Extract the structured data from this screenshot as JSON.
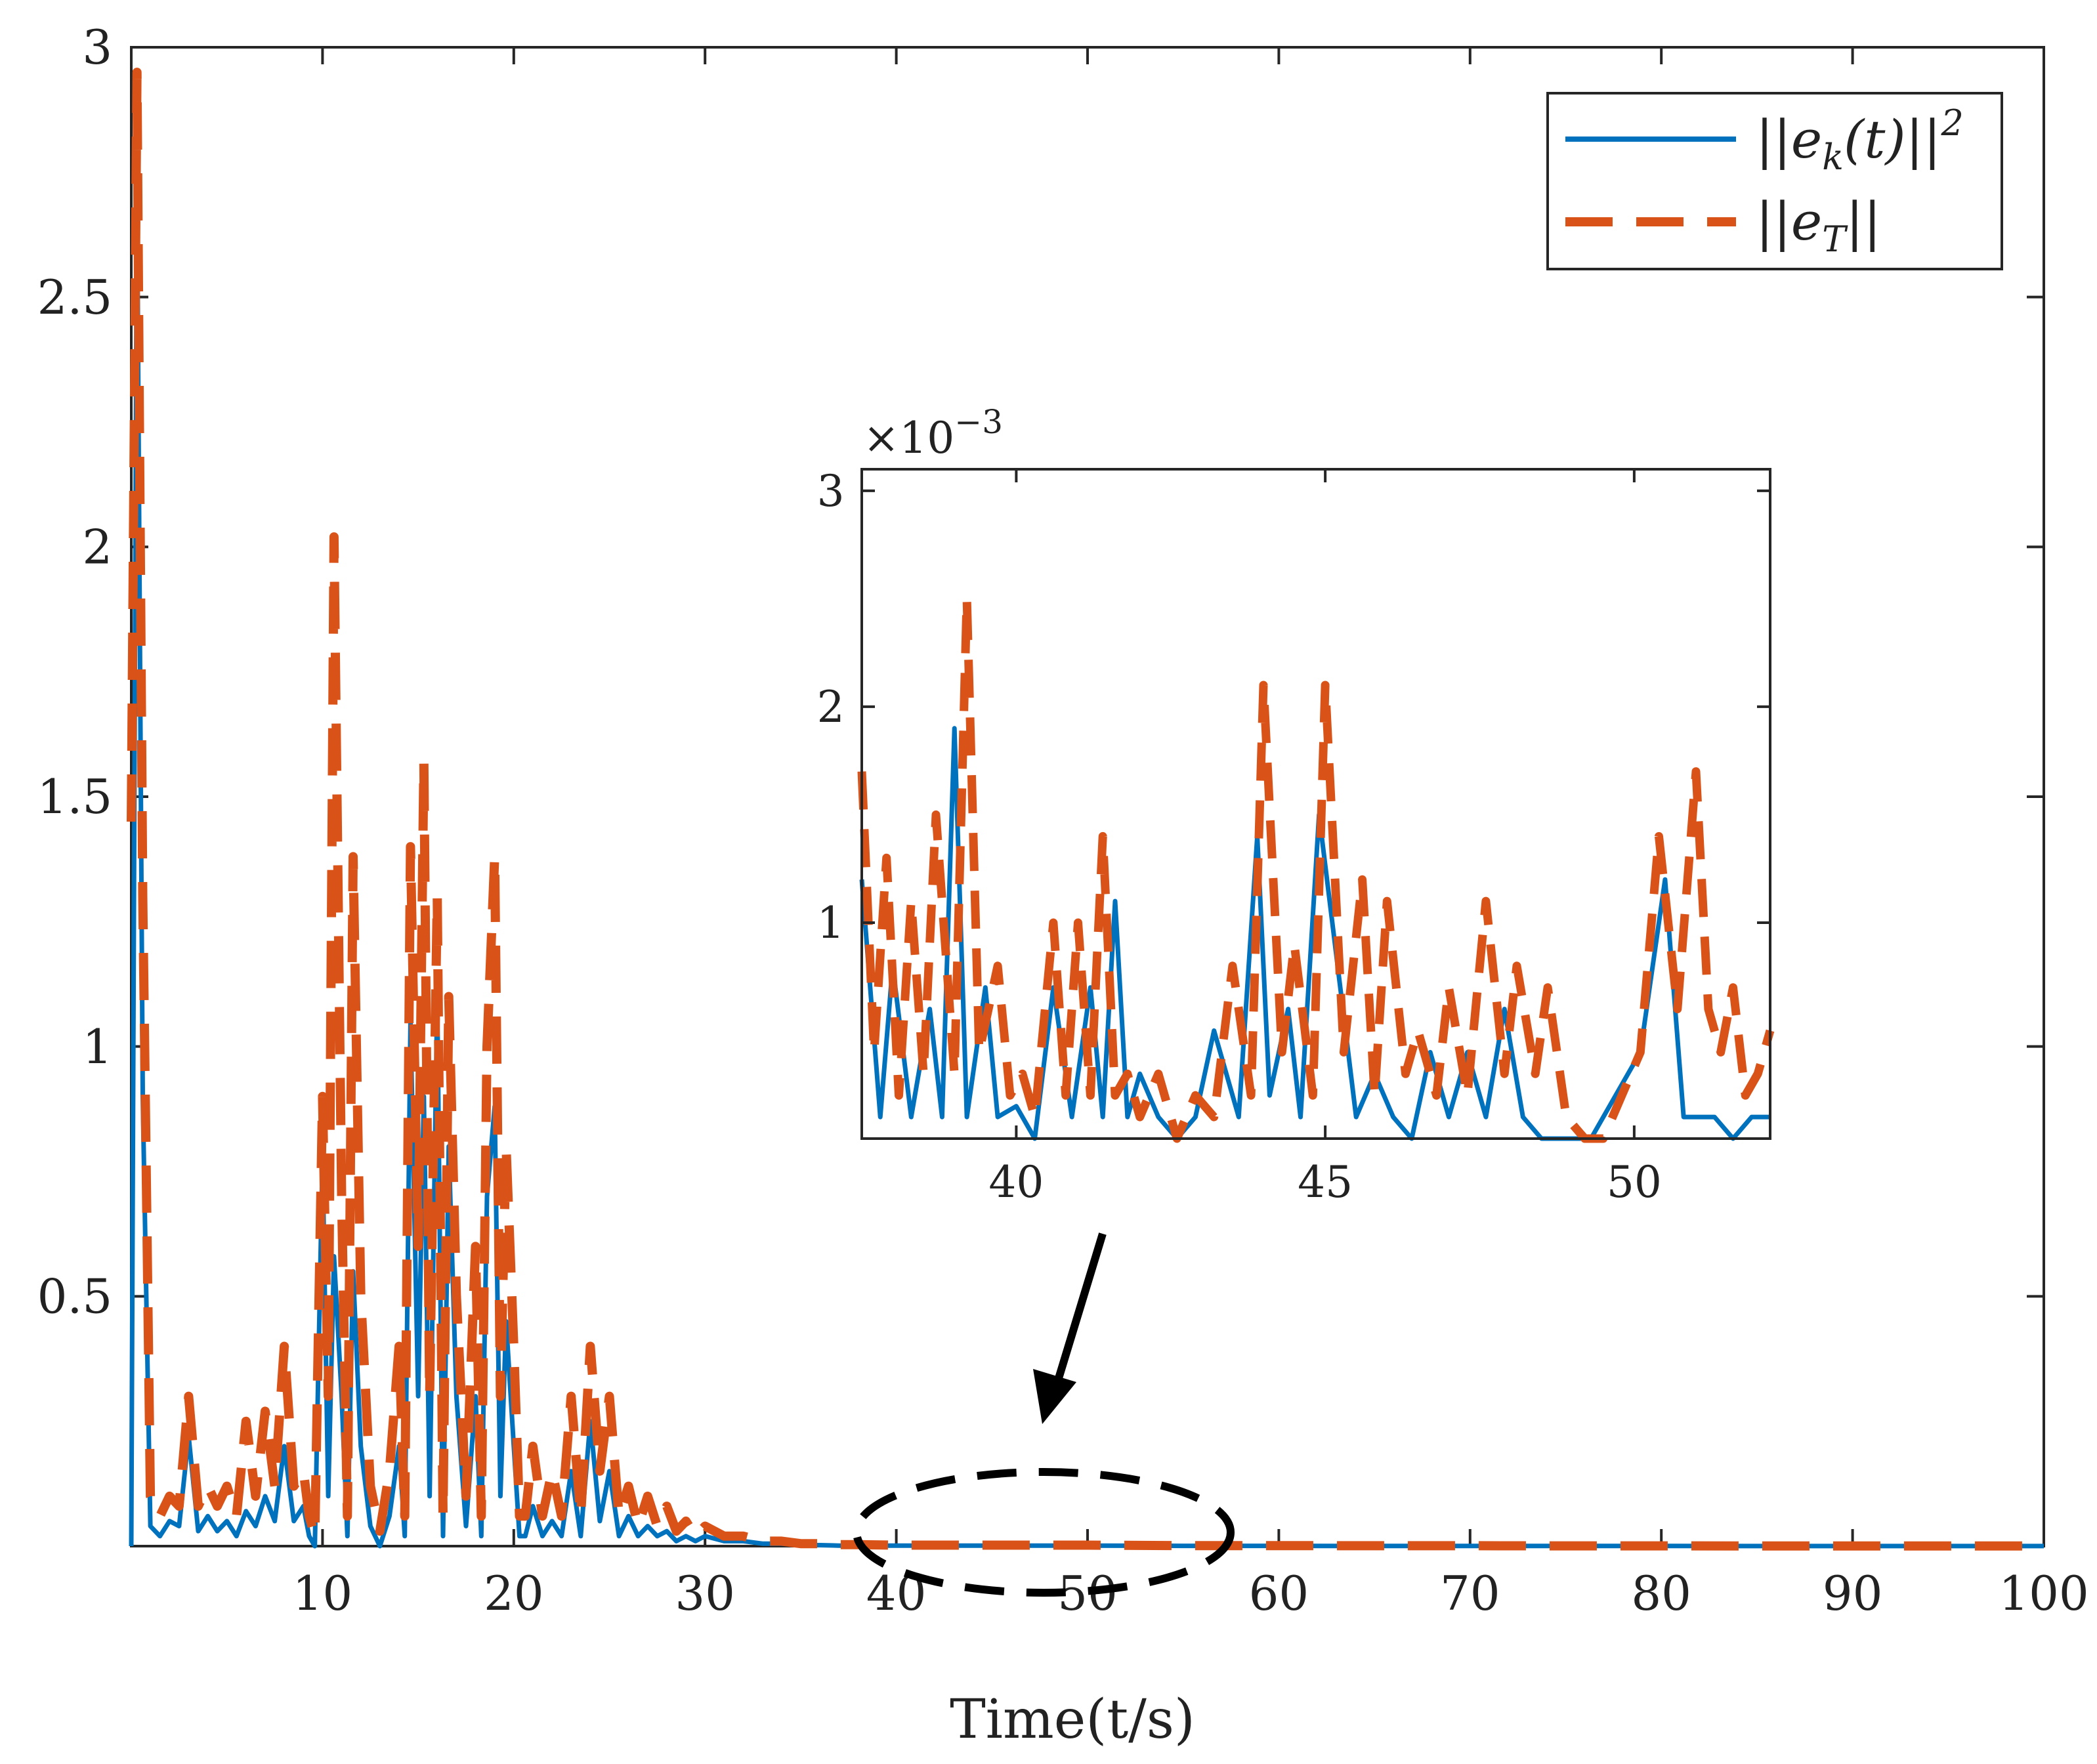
{
  "colors": {
    "series_blue": "#0072BD",
    "series_orange": "#D95319",
    "axis": "#262626",
    "background": "#ffffff"
  },
  "chart_data": [
    {
      "type": "line",
      "name": "main",
      "xlabel": "Time(t/s)",
      "ylabel": "",
      "xlim": [
        0,
        100
      ],
      "ylim": [
        0,
        3
      ],
      "xticks": [
        10,
        20,
        30,
        40,
        50,
        60,
        70,
        80,
        90,
        100
      ],
      "xtick_labels": [
        "10",
        "20",
        "30",
        "40",
        "50",
        "60",
        "70",
        "80",
        "90",
        "100"
      ],
      "yticks": [
        0.5,
        1,
        1.5,
        2,
        2.5,
        3
      ],
      "ytick_labels": [
        "0.5",
        "1",
        "1.5",
        "2",
        "2.5",
        "3"
      ],
      "legend_position": "top-right",
      "legend": [
        "||e_k(t)||^2",
        "||e_T||"
      ],
      "legend_display": [
        {
          "prefix": "||e",
          "sub": "k",
          "mid": "(t)||",
          "sup": "2"
        },
        {
          "prefix": "||e",
          "sub": "T",
          "mid": "||",
          "sup": ""
        }
      ],
      "series": [
        {
          "name": "||e_k(t)||^2",
          "style": "solid",
          "color": "#0072BD",
          "x": [
            0,
            0.3,
            0.6,
            1,
            1.5,
            2,
            2.5,
            3,
            3.5,
            4,
            4.5,
            5,
            5.5,
            6,
            6.5,
            7,
            7.5,
            8,
            8.5,
            9,
            9.3,
            9.6,
            10,
            10.3,
            10.6,
            11,
            11.3,
            11.6,
            12,
            12.5,
            13,
            13.5,
            14,
            14.3,
            14.6,
            15,
            15.3,
            15.6,
            16,
            16.3,
            16.6,
            17,
            17.5,
            18,
            18.3,
            18.6,
            19,
            19.3,
            19.6,
            20,
            20.3,
            20.6,
            21,
            21.5,
            22,
            22.5,
            23,
            23.5,
            24,
            24.5,
            25,
            25.5,
            26,
            26.5,
            27,
            27.5,
            28,
            28.5,
            29,
            29.5,
            30,
            31,
            32,
            33,
            34,
            35,
            36,
            37,
            38,
            40,
            45,
            50,
            55,
            60,
            65,
            70,
            75,
            80,
            85,
            90,
            95,
            100
          ],
          "values": [
            0.0,
            2.75,
            0.9,
            0.04,
            0.02,
            0.05,
            0.04,
            0.22,
            0.03,
            0.06,
            0.03,
            0.05,
            0.02,
            0.07,
            0.04,
            0.1,
            0.05,
            0.2,
            0.05,
            0.08,
            0.02,
            0.0,
            0.78,
            0.1,
            0.58,
            0.3,
            0.02,
            0.55,
            0.2,
            0.04,
            0.0,
            0.06,
            0.2,
            0.02,
            1.05,
            0.3,
            0.9,
            0.1,
            1.1,
            0.02,
            0.8,
            0.3,
            0.04,
            0.3,
            0.02,
            0.7,
            0.88,
            0.1,
            0.45,
            0.2,
            0.02,
            0.02,
            0.08,
            0.02,
            0.05,
            0.02,
            0.15,
            0.02,
            0.25,
            0.05,
            0.15,
            0.02,
            0.06,
            0.02,
            0.04,
            0.02,
            0.03,
            0.01,
            0.02,
            0.01,
            0.02,
            0.01,
            0.01,
            0.005,
            0.005,
            0.002,
            0.002,
            0.001,
            0.001,
            0.001,
            0.001,
            0.001,
            0.0005,
            0.0005,
            0.0003,
            0.0003,
            0.0002,
            0.0002,
            0.0001,
            0.0001,
            0.0001,
            0.0001
          ]
        },
        {
          "name": "||e_T||",
          "style": "dashed",
          "color": "#D95319",
          "x": [
            0,
            0.3,
            0.6,
            1,
            1.5,
            2,
            2.5,
            3,
            3.5,
            4,
            4.5,
            5,
            5.5,
            6,
            6.5,
            7,
            7.5,
            8,
            8.5,
            9,
            9.3,
            9.6,
            10,
            10.3,
            10.6,
            11,
            11.3,
            11.6,
            12,
            12.5,
            13,
            13.5,
            14,
            14.3,
            14.6,
            15,
            15.3,
            15.6,
            16,
            16.3,
            16.6,
            17,
            17.5,
            18,
            18.3,
            18.6,
            19,
            19.3,
            19.6,
            20,
            20.3,
            20.6,
            21,
            21.5,
            22,
            22.5,
            23,
            23.5,
            24,
            24.5,
            25,
            25.5,
            26,
            26.5,
            27,
            27.5,
            28,
            28.5,
            29,
            29.5,
            30,
            31,
            32,
            33,
            34,
            35,
            36,
            37,
            38,
            40,
            45,
            50,
            55,
            60,
            65,
            70,
            75,
            80,
            85,
            90,
            95,
            100
          ],
          "values": [
            1.45,
            2.95,
            1.3,
            0.1,
            0.06,
            0.1,
            0.08,
            0.3,
            0.08,
            0.12,
            0.08,
            0.12,
            0.06,
            0.25,
            0.1,
            0.27,
            0.12,
            0.4,
            0.12,
            0.15,
            0.06,
            0.02,
            0.9,
            0.3,
            2.02,
            0.7,
            0.06,
            1.38,
            0.5,
            0.12,
            0.03,
            0.15,
            0.4,
            0.06,
            1.4,
            0.6,
            1.57,
            0.3,
            1.3,
            0.06,
            1.1,
            0.5,
            0.1,
            0.6,
            0.06,
            1.0,
            1.38,
            0.3,
            0.8,
            0.4,
            0.06,
            0.06,
            0.2,
            0.06,
            0.15,
            0.06,
            0.3,
            0.06,
            0.4,
            0.15,
            0.3,
            0.06,
            0.12,
            0.04,
            0.1,
            0.04,
            0.08,
            0.03,
            0.05,
            0.02,
            0.04,
            0.02,
            0.02,
            0.01,
            0.01,
            0.005,
            0.005,
            0.003,
            0.003,
            0.002,
            0.002,
            0.002,
            0.001,
            0.001,
            0.0008,
            0.0008,
            0.0005,
            0.0005,
            0.0003,
            0.0003,
            0.0002,
            0.0002
          ]
        }
      ]
    },
    {
      "type": "line",
      "name": "inset",
      "xlim": [
        37.5,
        52.2
      ],
      "ylim": [
        0,
        0.0031
      ],
      "exponent_label": {
        "prefix": "×10",
        "power": "−3"
      },
      "xticks": [
        40,
        45,
        50
      ],
      "xtick_labels": [
        "40",
        "45",
        "50"
      ],
      "yticks": [
        0.001,
        0.002,
        0.003
      ],
      "ytick_labels": [
        "1",
        "2",
        "3"
      ],
      "series": [
        {
          "name": "||e_k(t)||^2",
          "style": "solid",
          "color": "#0072BD",
          "x": [
            37.5,
            37.8,
            38.0,
            38.3,
            38.6,
            38.8,
            39.0,
            39.2,
            39.5,
            39.7,
            40.0,
            40.3,
            40.6,
            40.9,
            41.2,
            41.4,
            41.6,
            41.8,
            42.0,
            42.3,
            42.6,
            42.9,
            43.2,
            43.6,
            43.9,
            44.1,
            44.4,
            44.6,
            44.9,
            45.2,
            45.5,
            45.8,
            46.1,
            46.4,
            46.7,
            47.0,
            47.3,
            47.6,
            47.9,
            48.2,
            48.5,
            48.9,
            49.3,
            49.7,
            50.1,
            50.5,
            50.8,
            51.0,
            51.3,
            51.6,
            51.9,
            52.2
          ],
          "values": [
            0.0012,
            0.0001,
            0.0008,
            0.0001,
            0.0006,
            0.0001,
            0.0019,
            0.0001,
            0.0007,
            0.0001,
            0.00015,
            0.0,
            0.0007,
            0.0001,
            0.0007,
            0.0001,
            0.0011,
            0.0001,
            0.0003,
            0.0001,
            0.0,
            0.0001,
            0.0005,
            0.0001,
            0.0014,
            0.0002,
            0.0006,
            0.0001,
            0.0015,
            0.0008,
            0.0001,
            0.0003,
            0.0001,
            0.0,
            0.0004,
            0.0001,
            0.0004,
            0.0001,
            0.0006,
            0.0001,
            0.0,
            0.0,
            0.0,
            0.0002,
            0.0004,
            0.0012,
            0.0001,
            0.0001,
            0.0001,
            0.0,
            0.0001,
            0.0001
          ]
        },
        {
          "name": "||e_T||",
          "style": "dashed",
          "color": "#D95319",
          "x": [
            37.5,
            37.7,
            37.9,
            38.1,
            38.3,
            38.5,
            38.7,
            39.0,
            39.2,
            39.4,
            39.7,
            39.9,
            40.1,
            40.3,
            40.6,
            40.8,
            41.0,
            41.2,
            41.4,
            41.6,
            41.8,
            42.0,
            42.3,
            42.6,
            42.9,
            43.2,
            43.5,
            43.8,
            44.0,
            44.3,
            44.5,
            44.8,
            45.0,
            45.3,
            45.6,
            45.8,
            46.0,
            46.3,
            46.5,
            46.8,
            47.0,
            47.3,
            47.6,
            47.9,
            48.1,
            48.4,
            48.6,
            48.9,
            49.2,
            49.5,
            49.8,
            50.1,
            50.4,
            50.7,
            51.0,
            51.2,
            51.4,
            51.6,
            51.8,
            52.0,
            52.2
          ],
          "values": [
            0.0017,
            0.0004,
            0.0013,
            0.0002,
            0.0011,
            0.0003,
            0.0015,
            0.0003,
            0.0025,
            0.0004,
            0.0008,
            0.0002,
            0.0003,
            0.0001,
            0.001,
            0.0002,
            0.001,
            0.0002,
            0.0014,
            0.0002,
            0.0003,
            0.0001,
            0.0003,
            0.0,
            0.0002,
            0.0001,
            0.0008,
            0.0002,
            0.0021,
            0.0004,
            0.0009,
            0.0002,
            0.0021,
            0.0004,
            0.0012,
            0.0002,
            0.0011,
            0.0003,
            0.0005,
            0.0002,
            0.0007,
            0.0002,
            0.0011,
            0.0003,
            0.0008,
            0.0003,
            0.0007,
            0.0001,
            0.0,
            0.0,
            0.0002,
            0.0004,
            0.0014,
            0.0006,
            0.0017,
            0.0006,
            0.0004,
            0.0007,
            0.0002,
            0.0003,
            0.0005
          ]
        }
      ]
    }
  ]
}
